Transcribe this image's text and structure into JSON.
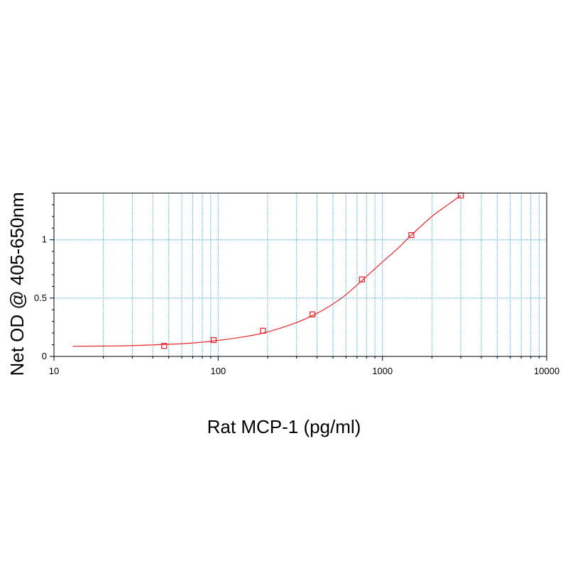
{
  "chart_data": {
    "type": "scatter",
    "title": "",
    "xlabel": "Rat MCP-1 (pg/ml)",
    "ylabel": "Net OD @ 405-650nm",
    "x_scale": "log",
    "xlim": [
      10,
      10000
    ],
    "ylim": [
      0,
      1.4
    ],
    "x_ticks": [
      10,
      100,
      1000,
      10000
    ],
    "x_tick_labels": [
      "10",
      "100",
      "1000",
      "10000"
    ],
    "y_ticks": [
      0,
      0.5,
      1
    ],
    "y_tick_labels": [
      "0",
      "0.5",
      "1"
    ],
    "grid": true,
    "grid_color": "#33aadd",
    "series": [
      {
        "marker": "square",
        "color": "#e8262a",
        "x": [
          46.9,
          93.8,
          187.5,
          375,
          750,
          1500,
          3000
        ],
        "y": [
          0.09,
          0.14,
          0.22,
          0.36,
          0.66,
          1.04,
          1.38
        ]
      }
    ],
    "fit_curve": {
      "color": "#e8262a",
      "x": [
        13,
        20,
        30,
        50,
        70,
        100,
        150,
        200,
        300,
        400,
        500,
        600,
        750,
        1000,
        1250,
        1500,
        2000,
        2500,
        3000
      ],
      "y": [
        0.087,
        0.089,
        0.093,
        0.104,
        0.115,
        0.137,
        0.173,
        0.21,
        0.29,
        0.37,
        0.45,
        0.53,
        0.65,
        0.81,
        0.93,
        1.04,
        1.2,
        1.3,
        1.38
      ]
    }
  }
}
